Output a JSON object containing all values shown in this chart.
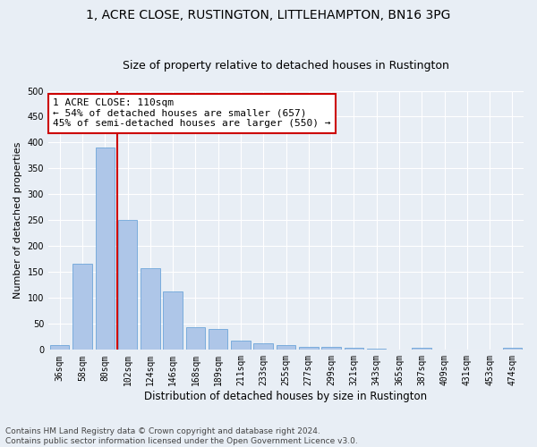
{
  "title1": "1, ACRE CLOSE, RUSTINGTON, LITTLEHAMPTON, BN16 3PG",
  "title2": "Size of property relative to detached houses in Rustington",
  "xlabel": "Distribution of detached houses by size in Rustington",
  "ylabel": "Number of detached properties",
  "categories": [
    "36sqm",
    "58sqm",
    "80sqm",
    "102sqm",
    "124sqm",
    "146sqm",
    "168sqm",
    "189sqm",
    "211sqm",
    "233sqm",
    "255sqm",
    "277sqm",
    "299sqm",
    "321sqm",
    "343sqm",
    "365sqm",
    "387sqm",
    "409sqm",
    "431sqm",
    "453sqm",
    "474sqm"
  ],
  "values": [
    10,
    167,
    390,
    250,
    157,
    113,
    44,
    40,
    17,
    13,
    9,
    6,
    5,
    4,
    2,
    0,
    4,
    0,
    0,
    0,
    4
  ],
  "bar_color": "#aec6e8",
  "bar_edge_color": "#5b9bd5",
  "vline_color": "#cc0000",
  "vline_x_index": 2.55,
  "annotation_text": "1 ACRE CLOSE: 110sqm\n← 54% of detached houses are smaller (657)\n45% of semi-detached houses are larger (550) →",
  "annotation_box_edge_color": "#cc0000",
  "ylim": [
    0,
    500
  ],
  "yticks": [
    0,
    50,
    100,
    150,
    200,
    250,
    300,
    350,
    400,
    450,
    500
  ],
  "footnote": "Contains HM Land Registry data © Crown copyright and database right 2024.\nContains public sector information licensed under the Open Government Licence v3.0.",
  "bg_color": "#e8eef5",
  "plot_bg_color": "#e8eef5",
  "grid_color": "#ffffff",
  "title1_fontsize": 10,
  "title2_fontsize": 9,
  "xlabel_fontsize": 8.5,
  "ylabel_fontsize": 8,
  "tick_fontsize": 7,
  "annot_fontsize": 8,
  "footnote_fontsize": 6.5
}
